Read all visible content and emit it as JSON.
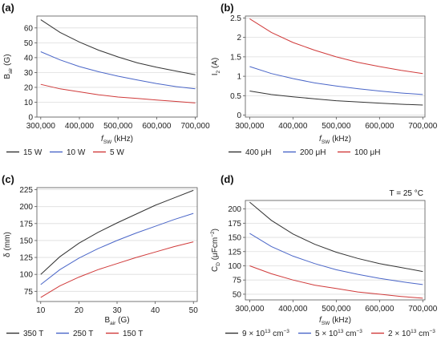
{
  "figure": {
    "panels": [
      {
        "label": "(a)"
      },
      {
        "label": "(b)"
      },
      {
        "label": "(c)"
      },
      {
        "label": "(d)",
        "annotation": "T = 25 °C"
      }
    ]
  },
  "chart_data": [
    {
      "type": "line",
      "panel": "(a)",
      "xlabel": "f",
      "xlabel_sub": "SW",
      "xlabel_unit": " (kHz)",
      "ylabel": "B",
      "ylabel_sub": "air",
      "ylabel_unit": " (G)",
      "xlim": [
        290000,
        705000
      ],
      "ylim": [
        0,
        68
      ],
      "xticks": [
        300000,
        400000,
        500000,
        600000,
        700000
      ],
      "xtick_labels": [
        "300,000",
        "400,000",
        "500,000",
        "600,000",
        "700,000"
      ],
      "yticks": [
        0,
        10,
        20,
        30,
        40,
        50,
        60
      ],
      "ytick_labels": [
        "0",
        "10",
        "20",
        "30",
        "40",
        "50",
        "60"
      ],
      "grid": true,
      "legend_position": "bottom",
      "x": [
        300000,
        350000,
        400000,
        450000,
        500000,
        550000,
        600000,
        650000,
        700000
      ],
      "series": [
        {
          "name": "15 W",
          "color": "#333333",
          "values": [
            65.5,
            57.0,
            50.5,
            45.0,
            40.5,
            36.5,
            33.5,
            31.0,
            28.5
          ]
        },
        {
          "name": "10 W",
          "color": "#4a66c8",
          "values": [
            44.0,
            38.5,
            34.0,
            30.5,
            27.5,
            25.0,
            22.5,
            20.5,
            19.0
          ]
        },
        {
          "name": "5 W",
          "color": "#d03a3a",
          "values": [
            22.0,
            19.0,
            17.0,
            15.0,
            13.5,
            12.5,
            11.5,
            10.5,
            9.5
          ]
        }
      ]
    },
    {
      "type": "line",
      "panel": "(b)",
      "xlabel": "f",
      "xlabel_sub": "SW",
      "xlabel_unit": " (kHz)",
      "ylabel": "I",
      "ylabel_sub": "2",
      "ylabel_unit": " (A)",
      "xlim": [
        290000,
        705000
      ],
      "ylim": [
        -0.05,
        2.55
      ],
      "xticks": [
        300000,
        400000,
        500000,
        600000,
        700000
      ],
      "xtick_labels": [
        "300,000",
        "400,000",
        "500,000",
        "600,000",
        "700,000"
      ],
      "yticks": [
        0,
        0.5,
        1,
        1.5,
        2,
        2.5
      ],
      "ytick_labels": [
        "0",
        "0.5",
        "1",
        "1.5",
        "2",
        "2.5"
      ],
      "grid": true,
      "legend_position": "bottom",
      "x": [
        300000,
        350000,
        400000,
        450000,
        500000,
        550000,
        600000,
        650000,
        700000
      ],
      "series": [
        {
          "name": "400 μH",
          "color": "#333333",
          "values": [
            0.62,
            0.53,
            0.47,
            0.42,
            0.37,
            0.34,
            0.31,
            0.28,
            0.26
          ]
        },
        {
          "name": "200 μH",
          "color": "#4a66c8",
          "values": [
            1.25,
            1.07,
            0.94,
            0.83,
            0.75,
            0.68,
            0.62,
            0.57,
            0.53
          ]
        },
        {
          "name": "100 μH",
          "color": "#d03a3a",
          "values": [
            2.48,
            2.13,
            1.87,
            1.67,
            1.5,
            1.36,
            1.25,
            1.15,
            1.07
          ]
        }
      ]
    },
    {
      "type": "line",
      "panel": "(c)",
      "xlabel": "B",
      "xlabel_sub": "air",
      "xlabel_unit": " (G)",
      "ylabel": "δ (mm)",
      "ylabel_sub": "",
      "ylabel_unit": "",
      "xlim": [
        9,
        51
      ],
      "ylim": [
        60,
        228
      ],
      "xticks": [
        10,
        20,
        30,
        40,
        50
      ],
      "xtick_labels": [
        "10",
        "20",
        "30",
        "40",
        "50"
      ],
      "yticks": [
        75,
        100,
        125,
        150,
        175,
        200,
        225
      ],
      "ytick_labels": [
        "75",
        "100",
        "125",
        "150",
        "175",
        "200",
        "225"
      ],
      "grid": true,
      "legend_position": "bottom",
      "x": [
        10,
        15,
        20,
        25,
        30,
        35,
        40,
        45,
        50
      ],
      "series": [
        {
          "name": "350 T",
          "color": "#333333",
          "values": [
            100,
            126,
            146,
            162,
            176,
            189,
            202,
            213,
            224
          ]
        },
        {
          "name": "250 T",
          "color": "#4a66c8",
          "values": [
            85,
            107,
            124,
            138,
            150,
            161,
            171,
            181,
            190
          ]
        },
        {
          "name": "150 T",
          "color": "#d03a3a",
          "values": [
            66,
            83,
            96,
            107,
            116,
            125,
            133,
            141,
            148
          ]
        }
      ]
    },
    {
      "type": "line",
      "panel": "(d)",
      "xlabel": "f",
      "xlabel_sub": "SW",
      "xlabel_unit": " (kHz)",
      "ylabel": "C",
      "ylabel_sub": "D",
      "ylabel_unit": " (μFcm",
      "ylabel_sup": "−2",
      "ylabel_tail": ")",
      "xlim": [
        290000,
        705000
      ],
      "ylim": [
        40,
        215
      ],
      "xticks": [
        300000,
        400000,
        500000,
        600000,
        700000
      ],
      "xtick_labels": [
        "300,000",
        "400,000",
        "500,000",
        "600,000",
        "700,000"
      ],
      "yticks": [
        50,
        75,
        100,
        125,
        150,
        175,
        200
      ],
      "ytick_labels": [
        "50",
        "75",
        "100",
        "125",
        "150",
        "175",
        "200"
      ],
      "grid": true,
      "legend_position": "bottom",
      "x": [
        300000,
        350000,
        400000,
        450000,
        500000,
        550000,
        600000,
        650000,
        700000
      ],
      "series": [
        {
          "name": "9 × 10",
          "name_sup": "13",
          "name_tail": " cm",
          "name_tail_sup": "−3",
          "color": "#333333",
          "values": [
            212,
            180,
            156,
            138,
            124,
            113,
            104,
            97,
            90
          ]
        },
        {
          "name": "5 × 10",
          "name_sup": "13",
          "name_tail": " cm",
          "name_tail_sup": "−3",
          "color": "#4a66c8",
          "values": [
            157,
            134,
            117,
            104,
            93,
            85,
            78,
            72,
            67
          ]
        },
        {
          "name": "2 × 10",
          "name_sup": "13",
          "name_tail": " cm",
          "name_tail_sup": "−3",
          "color": "#d03a3a",
          "values": [
            100,
            86,
            75,
            66,
            60,
            54,
            50,
            46,
            43
          ]
        }
      ]
    }
  ]
}
